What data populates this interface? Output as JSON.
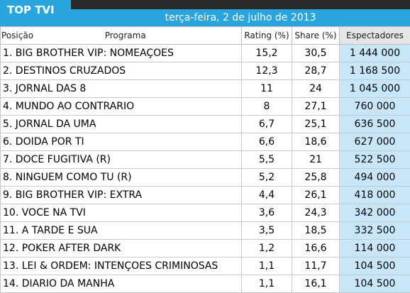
{
  "header": {
    "title": "TOP TVI",
    "date": "terça-feira, 2 de julho de 2013"
  },
  "columns": {
    "position_program": "Posição",
    "program": "Programa",
    "rating": "Rating (%)",
    "share": "Share (%)",
    "viewers": "Espectadores"
  },
  "rows": [
    {
      "program": "1. BIG BROTHER VIP: NOMEAÇOES",
      "rating": "15,2",
      "share": "30,5",
      "viewers": "1 444 000"
    },
    {
      "program": "2. DESTINOS CRUZADOS",
      "rating": "12,3",
      "share": "28,7",
      "viewers": "1 168 500"
    },
    {
      "program": "3. JORNAL DAS 8",
      "rating": "11",
      "share": "24",
      "viewers": "1 045 000"
    },
    {
      "program": "4. MUNDO AO CONTRARIO",
      "rating": "8",
      "share": "27,1",
      "viewers": "760 000"
    },
    {
      "program": "5. JORNAL DA UMA",
      "rating": "6,7",
      "share": "25,1",
      "viewers": "636 500"
    },
    {
      "program": "6. DOIDA POR TI",
      "rating": "6,6",
      "share": "18,6",
      "viewers": "627 000"
    },
    {
      "program": "7. DOCE FUGITIVA (R)",
      "rating": "5,5",
      "share": "21",
      "viewers": "522 500"
    },
    {
      "program": "8. NINGUEM COMO TU (R)",
      "rating": "5,2",
      "share": "25,8",
      "viewers": "494 000"
    },
    {
      "program": "9. BIG BROTHER VIP: EXTRA",
      "rating": "4,4",
      "share": "26,1",
      "viewers": "418 000"
    },
    {
      "program": "10. VOCE NA TVI",
      "rating": "3,6",
      "share": "24,3",
      "viewers": "342 000"
    },
    {
      "program": "11. A TARDE E SUA",
      "rating": "3,5",
      "share": "18,5",
      "viewers": "332 500"
    },
    {
      "program": "12. POKER AFTER DARK",
      "rating": "1,2",
      "share": "16,6",
      "viewers": "114 000"
    },
    {
      "program": "13. LEI & ORDEM: INTENÇOES CRIMINOSAS",
      "rating": "1,1",
      "share": "11,7",
      "viewers": "104 500"
    },
    {
      "program": "14. DIARIO DA MANHA",
      "rating": "1,1",
      "share": "16,1",
      "viewers": "104 500"
    }
  ],
  "colors": {
    "accent": "#2aa4dc",
    "topbar": "#2b2b2b",
    "viewers_cell": "#c8e6fa"
  }
}
